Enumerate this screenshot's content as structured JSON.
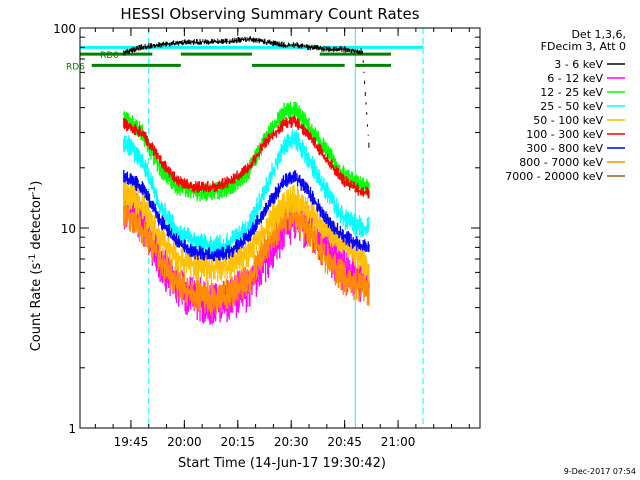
{
  "chart_data": {
    "type": "line",
    "title": "HESSI Observing Summary Count Rates",
    "xlabel": "Start Time (14-Jun-17 19:30:42)",
    "ylabel_main": "Count Rate (s",
    "ylabel_sup1": "-1",
    "ylabel_mid": " detector",
    "ylabel_sup2": "-1",
    "ylabel_end": ")",
    "y_scale": "log",
    "xlim": [
      "19:30:42",
      "21:23:00"
    ],
    "ylim": [
      1,
      100
    ],
    "x_ticks": [
      "19:45",
      "20:00",
      "20:15",
      "20:30",
      "20:45",
      "21:00"
    ],
    "y_ticks": [
      "1",
      "10",
      "100"
    ],
    "grid": false,
    "legend_position": "top-right",
    "legend_header": [
      "Det 1,3,6,",
      "FDecim 3, Att 0"
    ],
    "timestamp": "9-Dec-2017 07:54",
    "flags": [
      {
        "label": "RD0",
        "color": "#008000",
        "segments": [
          [
            "19:30:42",
            "19:51:00"
          ],
          [
            "19:59:00",
            "20:19:00"
          ],
          [
            "20:38:00",
            "20:58:00"
          ]
        ]
      },
      {
        "label": "RD6",
        "color": "#008000",
        "segments": [
          [
            "19:34:00",
            "19:59:00"
          ],
          [
            "20:19:00",
            "20:45:00"
          ],
          [
            "20:48:00",
            "20:58:00"
          ]
        ]
      }
    ],
    "eclipse": {
      "color": "#00ffff",
      "y_value": 80,
      "segments": [
        [
          "19:30:42",
          "20:46:00"
        ],
        [
          "20:46:00",
          "21:07:00"
        ]
      ]
    },
    "vertical_markers": [
      {
        "time": "19:30:42",
        "style": "solid",
        "color": "#00ffff"
      },
      {
        "time": "19:50:00",
        "style": "dashed",
        "color": "#00ffff"
      },
      {
        "time": "20:48:00",
        "style": "solid",
        "color": "#00ffff"
      },
      {
        "time": "21:07:00",
        "style": "dashed",
        "color": "#00ffff"
      }
    ],
    "x_time_points": [
      "19:43",
      "19:48",
      "19:53",
      "19:58",
      "20:03",
      "20:08",
      "20:13",
      "20:18",
      "20:23",
      "20:28",
      "20:31",
      "20:35",
      "20:40",
      "20:45",
      "20:50",
      "20:52"
    ],
    "series": [
      {
        "name": "3 - 6 keV",
        "color": "#000000",
        "values": [
          75,
          80,
          82,
          84,
          85,
          85,
          86,
          88,
          85,
          82,
          82,
          80,
          78,
          78,
          76,
          23
        ]
      },
      {
        "name": "6 - 12 keV",
        "color": "#ff00ff",
        "values": [
          13,
          11,
          7,
          5.2,
          4.5,
          4.2,
          4.5,
          5,
          7,
          10,
          11,
          10,
          8,
          6,
          5.5,
          5
        ]
      },
      {
        "name": "12 - 25 keV",
        "color": "#00ff00",
        "values": [
          37,
          30,
          20,
          16,
          15,
          15,
          16,
          19,
          28,
          38,
          39,
          32,
          24,
          18,
          16,
          16
        ]
      },
      {
        "name": "25 - 50 keV",
        "color": "#00ffff",
        "values": [
          27,
          22,
          13,
          9.5,
          8.5,
          8,
          8.5,
          10,
          16,
          26,
          28,
          22,
          15,
          11,
          10,
          10
        ]
      },
      {
        "name": "50 - 100 keV",
        "color": "#ffc000",
        "values": [
          15,
          13,
          9,
          7,
          6.5,
          6.3,
          6.5,
          7.5,
          10,
          13,
          14,
          12,
          10,
          8,
          7,
          6
        ]
      },
      {
        "name": "100 - 300 keV",
        "color": "#ff0000",
        "values": [
          33,
          30,
          22,
          17,
          16,
          16,
          17,
          20,
          27,
          33,
          34,
          29,
          22,
          17,
          15,
          15
        ]
      },
      {
        "name": "300 - 800 keV",
        "color": "#0000ff",
        "values": [
          18,
          16,
          11,
          8.5,
          7.5,
          7.3,
          7.6,
          9,
          12.5,
          17,
          18,
          15,
          11,
          9,
          8,
          8
        ]
      },
      {
        "name": "800 - 7000 keV",
        "color": "#ff8c00",
        "values": [
          12,
          10,
          7,
          5.2,
          4.6,
          4.4,
          4.7,
          5.5,
          8,
          11,
          11.5,
          9.5,
          7,
          5.5,
          5,
          4.5
        ]
      },
      {
        "name": "7000 - 20000 keV",
        "color": "#8b6914",
        "values": []
      }
    ]
  }
}
